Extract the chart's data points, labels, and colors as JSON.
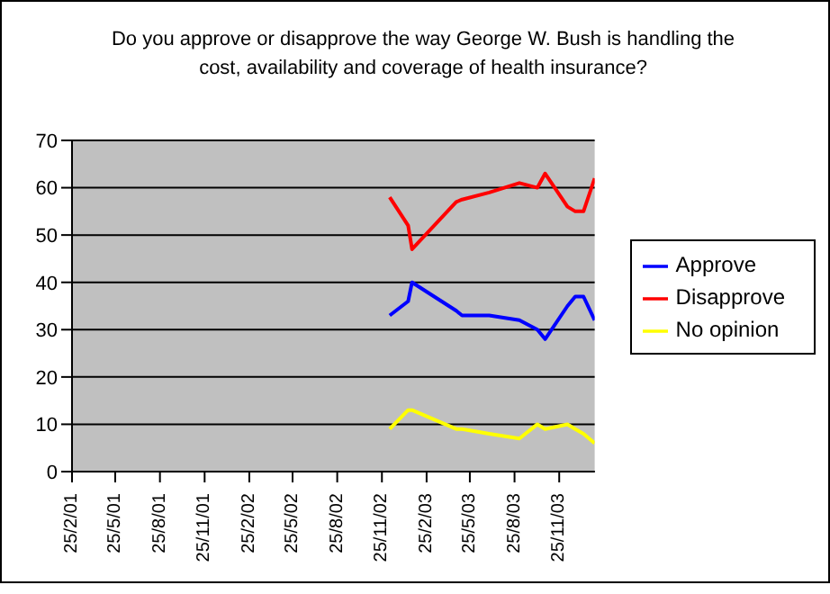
{
  "chart_data": {
    "type": "line",
    "title": "Do you approve or disapprove the way George W. Bush is handling the cost, availability and coverage of health insurance?",
    "x": [
      "2002-12-11",
      "2003-01-18",
      "2003-01-26",
      "2003-04-27",
      "2003-05-09",
      "2003-07-04",
      "2003-09-04",
      "2003-10-11",
      "2003-10-27",
      "2003-12-12",
      "2003-12-28",
      "2004-01-14",
      "2004-02-06"
    ],
    "series": [
      {
        "name": "Approve",
        "color": "#0000ff",
        "values": [
          33,
          36,
          40,
          34,
          33,
          33,
          32,
          30,
          28,
          35,
          37,
          37,
          32
        ]
      },
      {
        "name": "Disapprove",
        "color": "#ff0000",
        "values": [
          58,
          52,
          47,
          57,
          57.5,
          59,
          61,
          60,
          63,
          56,
          55,
          55,
          62
        ]
      },
      {
        "name": "No opinion",
        "color": "#ffff00",
        "values": [
          9,
          13,
          13,
          9,
          9,
          8,
          7,
          10,
          9,
          10,
          9,
          8,
          6
        ]
      }
    ],
    "xlim": [
      "2001-02-25",
      "2004-02-06"
    ],
    "xticks": [
      {
        "value": "2001-02-25",
        "label": "25/2/01"
      },
      {
        "value": "2001-05-25",
        "label": "25/5/01"
      },
      {
        "value": "2001-08-25",
        "label": "25/8/01"
      },
      {
        "value": "2001-11-25",
        "label": "25/11/01"
      },
      {
        "value": "2002-02-25",
        "label": "25/2/02"
      },
      {
        "value": "2002-05-25",
        "label": "25/5/02"
      },
      {
        "value": "2002-08-25",
        "label": "25/8/02"
      },
      {
        "value": "2002-11-25",
        "label": "25/11/02"
      },
      {
        "value": "2003-02-25",
        "label": "25/2/03"
      },
      {
        "value": "2003-05-25",
        "label": "25/5/03"
      },
      {
        "value": "2003-08-25",
        "label": "25/8/03"
      },
      {
        "value": "2003-11-25",
        "label": "25/11/03"
      }
    ],
    "ylim": [
      0,
      70
    ],
    "yticks": [
      0,
      10,
      20,
      30,
      40,
      50,
      60,
      70
    ],
    "grid": "y",
    "legend": "right",
    "marker": "none",
    "line_style": "solid"
  }
}
